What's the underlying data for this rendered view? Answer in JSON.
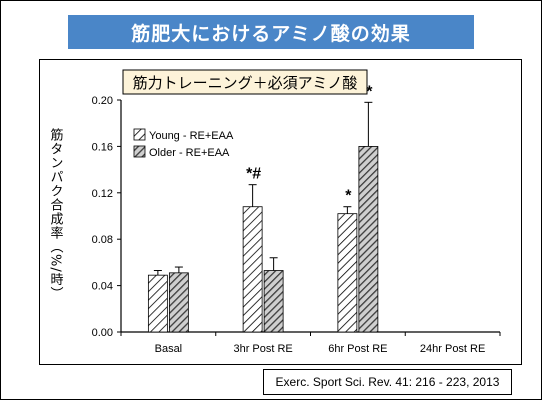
{
  "slide": {
    "title": "筋肥大におけるアミノ酸の効果",
    "citation": "Exerc. Sport Sci. Rev. 41: 216 - 223, 2013"
  },
  "chart_data": {
    "type": "bar",
    "title": "筋力トレーニング＋必須アミノ酸",
    "ylabel": "筋タンパク合成率（%/時）",
    "xlabel": "",
    "ylim": [
      0,
      0.2
    ],
    "yticks": [
      "0.00",
      "0.04",
      "0.08",
      "0.12",
      "0.16",
      "0.20"
    ],
    "categories": [
      "Basal",
      "3hr Post RE",
      "6hr Post RE",
      "24hr Post RE"
    ],
    "series": [
      {
        "name": "Young - RE+EAA",
        "values": [
          0.049,
          0.108,
          0.102,
          null
        ],
        "errors": [
          0.004,
          0.019,
          0.006,
          null
        ],
        "fill": "light-hatch"
      },
      {
        "name": "Older - RE+EAA",
        "values": [
          0.051,
          0.053,
          0.16,
          null
        ],
        "errors": [
          0.005,
          0.011,
          0.038,
          null
        ],
        "fill": "dark-hatch"
      }
    ],
    "annotations": [
      {
        "category": "3hr Post RE",
        "series": "Young - RE+EAA",
        "text": "*#"
      },
      {
        "category": "6hr Post RE",
        "series": "Young - RE+EAA",
        "text": "*"
      },
      {
        "category": "6hr Post RE",
        "series": "Older - RE+EAA",
        "text": "*"
      }
    ],
    "legend_position": "top-left",
    "grid": false,
    "colors": {
      "bar_stroke": "#000000",
      "hatch_dark": "#555555",
      "frame": "#000000"
    }
  }
}
